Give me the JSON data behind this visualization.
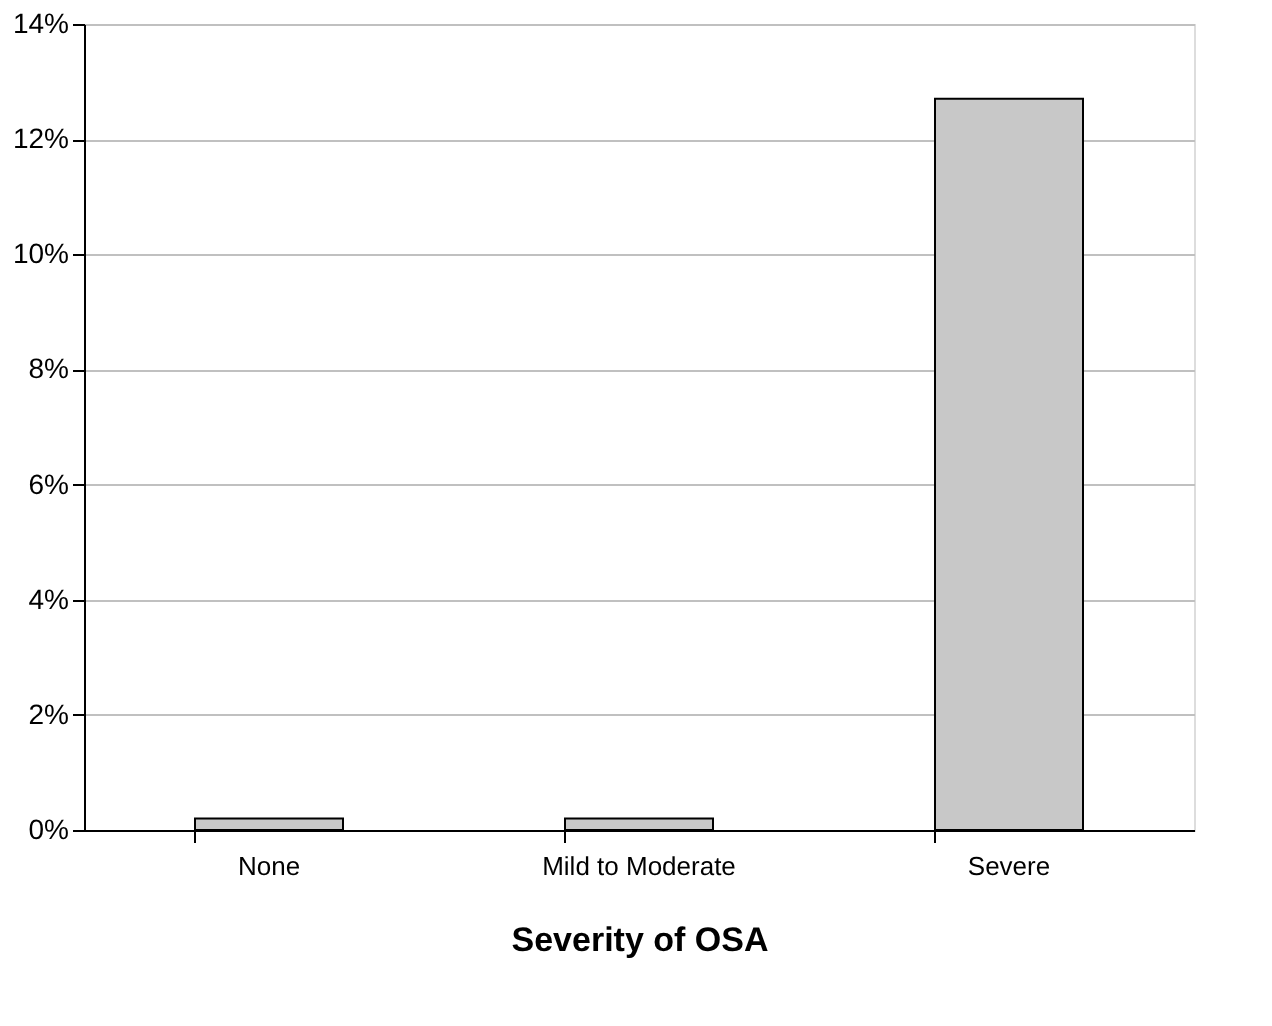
{
  "chart_data": {
    "type": "bar",
    "xlabel": "Severity of OSA",
    "categories": [
      "None",
      "Mild to Moderate",
      "Severe"
    ],
    "values": [
      0.2,
      0.2,
      12.7
    ],
    "color": "#c8c8c8",
    "ylim": [
      0,
      14
    ],
    "yticks": [
      {
        "value": 0,
        "label": "0%"
      },
      {
        "value": 2,
        "label": "2%"
      },
      {
        "value": 4,
        "label": "4%"
      },
      {
        "value": 6,
        "label": "6%"
      },
      {
        "value": 8,
        "label": "8%"
      },
      {
        "value": 10,
        "label": "10%"
      },
      {
        "value": 12,
        "label": "12%"
      },
      {
        "value": 14,
        "label": "14%"
      }
    ],
    "grid": "y"
  }
}
